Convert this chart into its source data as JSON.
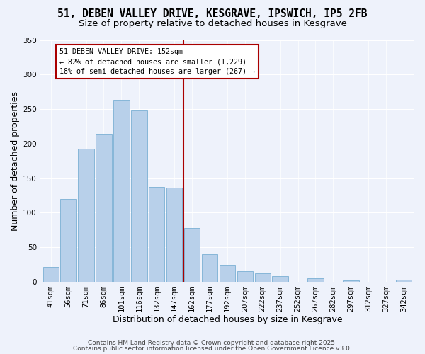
{
  "title": "51, DEBEN VALLEY DRIVE, KESGRAVE, IPSWICH, IP5 2FB",
  "subtitle": "Size of property relative to detached houses in Kesgrave",
  "xlabel": "Distribution of detached houses by size in Kesgrave",
  "ylabel": "Number of detached properties",
  "bar_labels": [
    "41sqm",
    "56sqm",
    "71sqm",
    "86sqm",
    "101sqm",
    "116sqm",
    "132sqm",
    "147sqm",
    "162sqm",
    "177sqm",
    "192sqm",
    "207sqm",
    "222sqm",
    "237sqm",
    "252sqm",
    "267sqm",
    "282sqm",
    "297sqm",
    "312sqm",
    "327sqm",
    "342sqm"
  ],
  "bar_values": [
    22,
    120,
    193,
    214,
    263,
    248,
    137,
    136,
    78,
    40,
    24,
    15,
    12,
    8,
    0,
    5,
    0,
    2,
    0,
    0,
    3
  ],
  "bar_color": "#b8d0ea",
  "bar_edge_color": "#7aafd4",
  "vline_x": 7.5,
  "vline_color": "#aa0000",
  "annotation_title": "51 DEBEN VALLEY DRIVE: 152sqm",
  "annotation_line1": "← 82% of detached houses are smaller (1,229)",
  "annotation_line2": "18% of semi-detached houses are larger (267) →",
  "annotation_box_color": "#ffffff",
  "annotation_box_edge": "#aa0000",
  "ylim": [
    0,
    350
  ],
  "yticks": [
    0,
    50,
    100,
    150,
    200,
    250,
    300,
    350
  ],
  "background_color": "#eef2fb",
  "footer1": "Contains HM Land Registry data © Crown copyright and database right 2025.",
  "footer2": "Contains public sector information licensed under the Open Government Licence v3.0.",
  "title_fontsize": 10.5,
  "subtitle_fontsize": 9.5,
  "axis_label_fontsize": 9,
  "tick_fontsize": 7.5,
  "footer_fontsize": 6.5
}
